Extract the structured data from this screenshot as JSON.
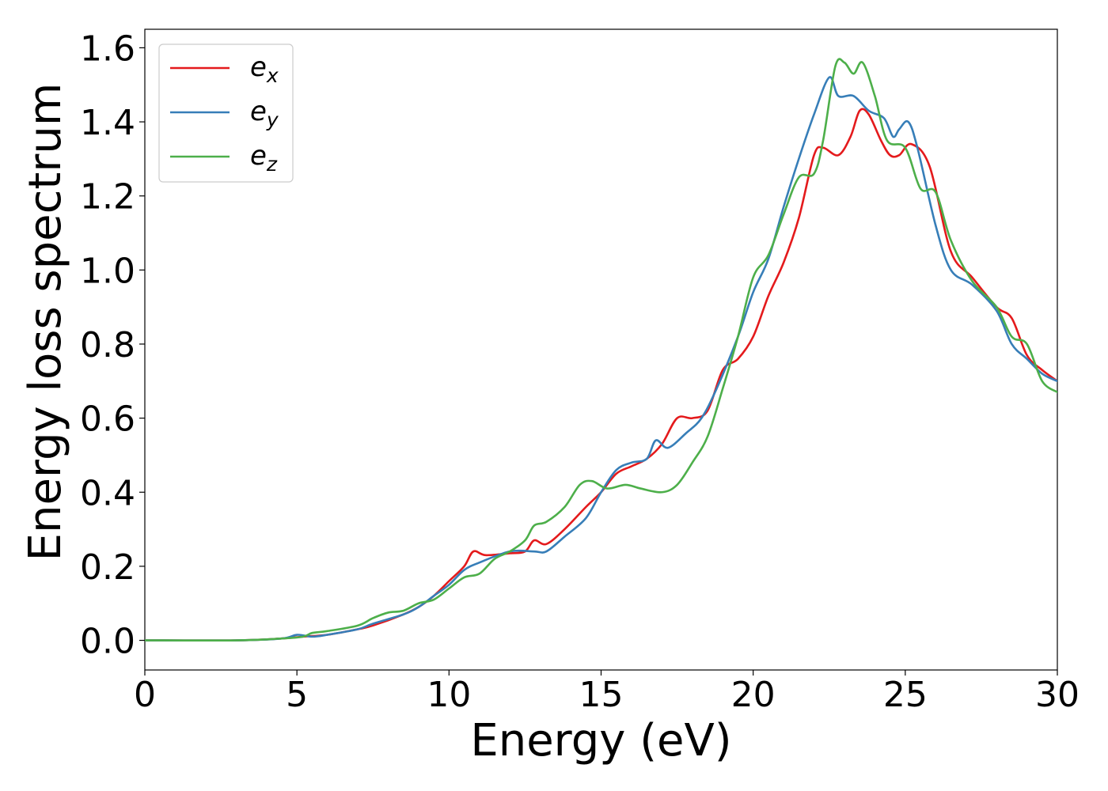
{
  "chart_data": {
    "type": "line",
    "title": "",
    "xlabel": "Energy (eV)",
    "ylabel": "Energy loss spectrum",
    "xlim": [
      0,
      30
    ],
    "ylim": [
      -0.08,
      1.65
    ],
    "xticks": [
      0,
      5,
      10,
      15,
      20,
      25,
      30
    ],
    "xtick_labels": [
      "0",
      "5",
      "10",
      "15",
      "20",
      "25",
      "30"
    ],
    "yticks": [
      0.0,
      0.2,
      0.4,
      0.6,
      0.8,
      1.0,
      1.2,
      1.4,
      1.6
    ],
    "ytick_labels": [
      "0.0",
      "0.2",
      "0.4",
      "0.6",
      "0.8",
      "1.0",
      "1.2",
      "1.4",
      "1.6"
    ],
    "grid": false,
    "legend_position": "top-left",
    "series": [
      {
        "name": "e_x",
        "label_main": "e",
        "label_sub": "x",
        "color": "#e41a1c",
        "x": [
          0,
          3,
          4.5,
          5.2,
          6,
          7,
          7.5,
          8.5,
          9,
          9.5,
          10,
          10.5,
          10.8,
          11.2,
          12,
          12.5,
          12.8,
          13.2,
          13.8,
          14.5,
          15,
          15.5,
          16,
          16.5,
          17,
          17.5,
          18,
          18.5,
          19,
          19.5,
          20,
          20.5,
          21,
          21.5,
          22,
          22.3,
          22.8,
          23.2,
          23.5,
          23.8,
          24.2,
          24.5,
          24.8,
          25.2,
          25.8,
          26.5,
          27.2,
          28,
          28.5,
          29,
          29.5,
          30
        ],
        "values": [
          0.0,
          0.0,
          0.005,
          0.01,
          0.015,
          0.03,
          0.04,
          0.07,
          0.09,
          0.12,
          0.16,
          0.2,
          0.24,
          0.23,
          0.235,
          0.24,
          0.27,
          0.26,
          0.3,
          0.36,
          0.4,
          0.45,
          0.47,
          0.49,
          0.53,
          0.6,
          0.6,
          0.62,
          0.73,
          0.76,
          0.82,
          0.93,
          1.02,
          1.14,
          1.31,
          1.33,
          1.31,
          1.36,
          1.43,
          1.42,
          1.35,
          1.31,
          1.31,
          1.34,
          1.28,
          1.05,
          0.98,
          0.9,
          0.87,
          0.77,
          0.73,
          0.7
        ]
      },
      {
        "name": "e_y",
        "label_main": "e",
        "label_sub": "y",
        "color": "#377eb8",
        "x": [
          0,
          3,
          4.5,
          5,
          5.5,
          6,
          7,
          7.5,
          8.5,
          9,
          9.5,
          10,
          10.5,
          11,
          12,
          12.8,
          13.2,
          13.8,
          14.5,
          15,
          15.5,
          16,
          16.5,
          16.8,
          17.2,
          17.8,
          18.3,
          18.8,
          19.5,
          20,
          20.5,
          21,
          21.5,
          22,
          22.5,
          22.8,
          23.3,
          23.8,
          24.3,
          24.6,
          24.8,
          25.1,
          25.4,
          26,
          26.5,
          27.2,
          28,
          28.5,
          29,
          29.5,
          30
        ],
        "values": [
          0.0,
          0.0,
          0.005,
          0.015,
          0.01,
          0.015,
          0.03,
          0.045,
          0.07,
          0.09,
          0.12,
          0.15,
          0.19,
          0.21,
          0.24,
          0.24,
          0.24,
          0.28,
          0.33,
          0.4,
          0.46,
          0.48,
          0.49,
          0.54,
          0.52,
          0.56,
          0.6,
          0.68,
          0.82,
          0.94,
          1.03,
          1.17,
          1.3,
          1.42,
          1.52,
          1.47,
          1.47,
          1.43,
          1.41,
          1.36,
          1.38,
          1.4,
          1.33,
          1.12,
          1.0,
          0.96,
          0.89,
          0.8,
          0.76,
          0.72,
          0.7
        ]
      },
      {
        "name": "e_z",
        "label_main": "e",
        "label_sub": "z",
        "color": "#4daf4a",
        "x": [
          0,
          3,
          4.5,
          5.2,
          5.5,
          6,
          7,
          7.5,
          8,
          8.5,
          9,
          9.5,
          10,
          10.5,
          11,
          11.5,
          12,
          12.5,
          12.8,
          13.2,
          13.8,
          14.3,
          14.7,
          15.2,
          15.8,
          16.3,
          17,
          17.5,
          18,
          18.5,
          19,
          19.5,
          20,
          20.5,
          21,
          21.5,
          22,
          22.3,
          22.7,
          23,
          23.3,
          23.6,
          24,
          24.4,
          25,
          25.5,
          26,
          26.5,
          27.2,
          28,
          28.5,
          29,
          29.5,
          30
        ],
        "values": [
          0.0,
          0.0,
          0.005,
          0.01,
          0.02,
          0.025,
          0.04,
          0.06,
          0.075,
          0.08,
          0.1,
          0.11,
          0.14,
          0.17,
          0.18,
          0.22,
          0.24,
          0.27,
          0.31,
          0.32,
          0.36,
          0.42,
          0.43,
          0.41,
          0.42,
          0.41,
          0.4,
          0.42,
          0.48,
          0.55,
          0.68,
          0.82,
          0.98,
          1.04,
          1.15,
          1.25,
          1.26,
          1.35,
          1.55,
          1.56,
          1.53,
          1.56,
          1.47,
          1.35,
          1.33,
          1.22,
          1.21,
          1.08,
          0.97,
          0.9,
          0.82,
          0.8,
          0.7,
          0.67
        ]
      }
    ]
  }
}
